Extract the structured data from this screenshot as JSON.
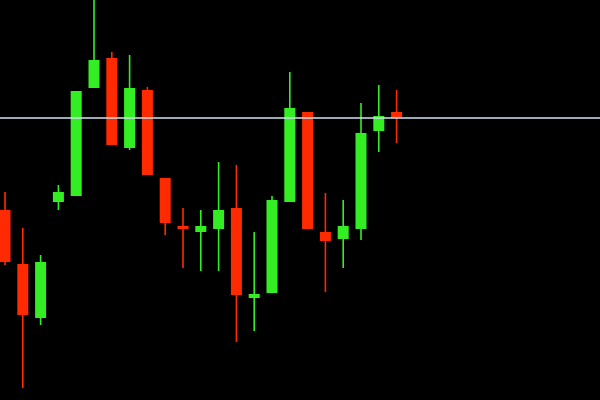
{
  "chart_data": {
    "type": "candlestick",
    "title": "",
    "xlabel": "",
    "ylabel": "",
    "ylim": [
      0,
      400
    ],
    "grid": false,
    "background": "#000000",
    "up_color": "#33ee22",
    "down_color": "#ff2a00",
    "reference_line": {
      "value": 282,
      "color": "#cfe4f2"
    },
    "candles": [
      {
        "open": 190,
        "high": 208,
        "low": 135,
        "close": 138
      },
      {
        "open": 136,
        "high": 172,
        "low": 12,
        "close": 85
      },
      {
        "open": 82,
        "high": 145,
        "low": 75,
        "close": 138
      },
      {
        "open": 198,
        "high": 215,
        "low": 190,
        "close": 208
      },
      {
        "open": 204,
        "high": 309,
        "low": 204,
        "close": 309
      },
      {
        "open": 312,
        "high": 400,
        "low": 312,
        "close": 340
      },
      {
        "open": 342,
        "high": 348,
        "low": 255,
        "close": 255
      },
      {
        "open": 252,
        "high": 345,
        "low": 250,
        "close": 312
      },
      {
        "open": 310,
        "high": 313,
        "low": 225,
        "close": 225
      },
      {
        "open": 222,
        "high": 222,
        "low": 165,
        "close": 177
      },
      {
        "open": 174,
        "high": 192,
        "low": 132,
        "close": 171
      },
      {
        "open": 168,
        "high": 190,
        "low": 129,
        "close": 174
      },
      {
        "open": 171,
        "high": 238,
        "low": 129,
        "close": 190
      },
      {
        "open": 192,
        "high": 235,
        "low": 58,
        "close": 105
      },
      {
        "open": 102,
        "high": 168,
        "low": 69,
        "close": 106
      },
      {
        "open": 107,
        "high": 204,
        "low": 107,
        "close": 200
      },
      {
        "open": 198,
        "high": 328,
        "low": 198,
        "close": 292
      },
      {
        "open": 288,
        "high": 288,
        "low": 171,
        "close": 171
      },
      {
        "open": 168,
        "high": 207,
        "low": 108,
        "close": 159
      },
      {
        "open": 161,
        "high": 200,
        "low": 132,
        "close": 174
      },
      {
        "open": 171,
        "high": 297,
        "low": 160,
        "close": 267
      },
      {
        "open": 269,
        "high": 315,
        "low": 248,
        "close": 284
      },
      {
        "open": 288,
        "high": 310,
        "low": 257,
        "close": 282
      }
    ]
  }
}
